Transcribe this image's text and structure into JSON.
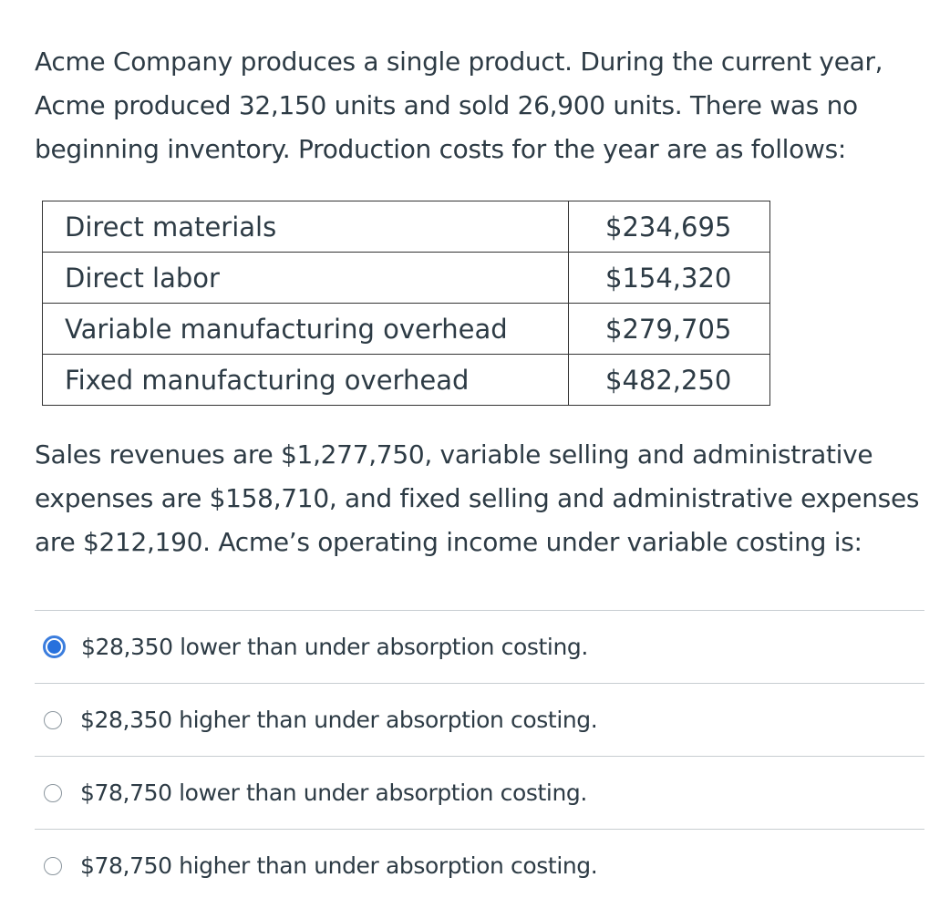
{
  "question": {
    "intro": "Acme Company produces a single product. During the current year, Acme produced 32,150 units and sold 26,900 units. There was no beginning inventory. Production costs for the year are as follows:",
    "costs": [
      {
        "label": "Direct materials",
        "amount": "$234,695"
      },
      {
        "label": "Direct labor",
        "amount": "$154,320"
      },
      {
        "label": "Variable manufacturing overhead",
        "amount": "$279,705"
      },
      {
        "label": "Fixed manufacturing overhead",
        "amount": "$482,250"
      }
    ],
    "followup": "Sales revenues are $1,277,750, variable selling and administrative expenses are $158,710, and fixed selling and administrative expenses are $212,190. Acme’s operating income under variable costing is:"
  },
  "answers": [
    {
      "text": "$28,350 lower than under absorption costing.",
      "selected": true
    },
    {
      "text": "$28,350 higher than under absorption costing.",
      "selected": false
    },
    {
      "text": "$78,750 lower than under absorption costing.",
      "selected": false
    },
    {
      "text": "$78,750 higher than under absorption costing.",
      "selected": false
    }
  ],
  "colors": {
    "text": "#2d3b45",
    "radio_selected": "#2771dd",
    "divider": "#c7cdd1"
  }
}
